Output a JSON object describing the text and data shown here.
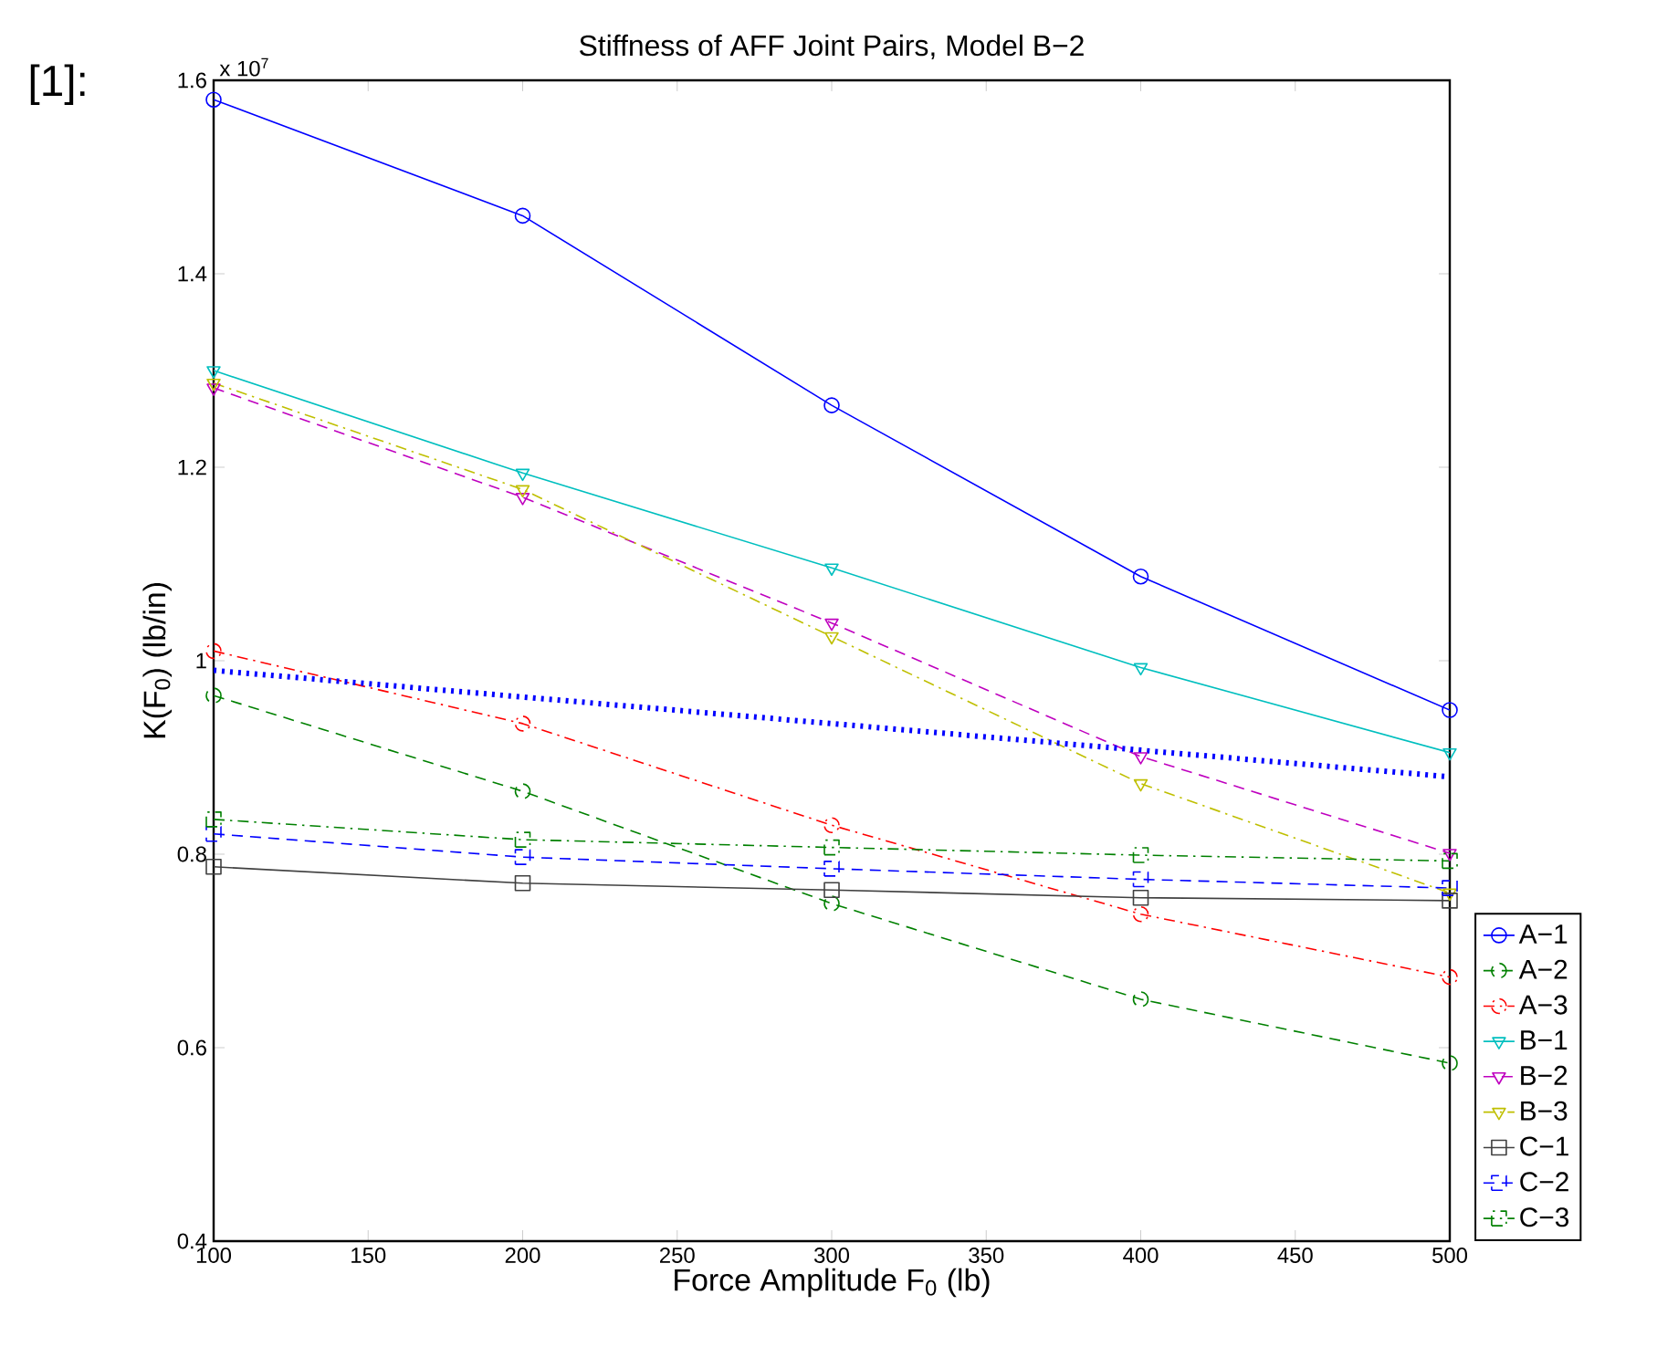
{
  "chart_data": {
    "type": "line",
    "title": "Stiffness of AFF Joint Pairs, Model B−2",
    "xlabel": "Force Amplitude F$_{0}$ (lb)",
    "ylabel": "K(F$_{0}$) (lb/in)",
    "annotations": [
      "x 10$^{7}$",
      "[1]:"
    ],
    "x": [
      100,
      200,
      300,
      400,
      500
    ],
    "xlim": [
      100,
      500
    ],
    "xticks": [
      100,
      150,
      200,
      250,
      300,
      350,
      400,
      450,
      500
    ],
    "ylim": [
      0.4,
      1.6
    ],
    "yticks": [
      0.4,
      0.6,
      0.8,
      1,
      1.2,
      1.4,
      1.6
    ],
    "grid": false,
    "legend": "right",
    "series": [
      {
        "name": "A−1",
        "color": "#0000ff",
        "marker": "circle",
        "line_style": "solid",
        "values": [
          1.58,
          1.46,
          1.264,
          1.087,
          0.949
        ]
      },
      {
        "name": "A−2",
        "color": "#008000",
        "marker": "circle",
        "line_style": "dashed",
        "values": [
          0.964,
          0.865,
          0.749,
          0.65,
          0.584
        ]
      },
      {
        "name": "A−3",
        "color": "#ff0000",
        "marker": "circle",
        "line_style": "dashdot",
        "values": [
          1.01,
          0.935,
          0.83,
          0.738,
          0.673
        ]
      },
      {
        "name": "B−1",
        "color": "#00bfbf",
        "marker": "triangle",
        "line_style": "solid",
        "values": [
          1.3,
          1.194,
          1.096,
          0.993,
          0.905
        ]
      },
      {
        "name": "B−2",
        "color": "#bf00bf",
        "marker": "triangle",
        "line_style": "dashed",
        "values": [
          1.282,
          1.169,
          1.039,
          0.901,
          0.801
        ]
      },
      {
        "name": "B−3",
        "color": "#bfbf00",
        "marker": "triangle",
        "line_style": "dashdot",
        "values": [
          1.287,
          1.177,
          1.025,
          0.873,
          0.76
        ]
      },
      {
        "name": "C−1",
        "color": "#404040",
        "marker": "square",
        "line_style": "solid",
        "values": [
          0.787,
          0.77,
          0.763,
          0.755,
          0.752
        ]
      },
      {
        "name": "C−2",
        "color": "#0000ff",
        "marker": "square",
        "line_style": "dashed",
        "values": [
          0.821,
          0.797,
          0.785,
          0.774,
          0.765
        ]
      },
      {
        "name": "C−3",
        "color": "#008000",
        "marker": "square",
        "line_style": "dashdot",
        "values": [
          0.836,
          0.815,
          0.807,
          0.799,
          0.793
        ]
      },
      {
        "color": "#0000ff",
        "marker": "none",
        "line_style": "dotted",
        "x": [
          100,
          500
        ],
        "values": [
          0.99,
          0.88
        ]
      }
    ]
  }
}
